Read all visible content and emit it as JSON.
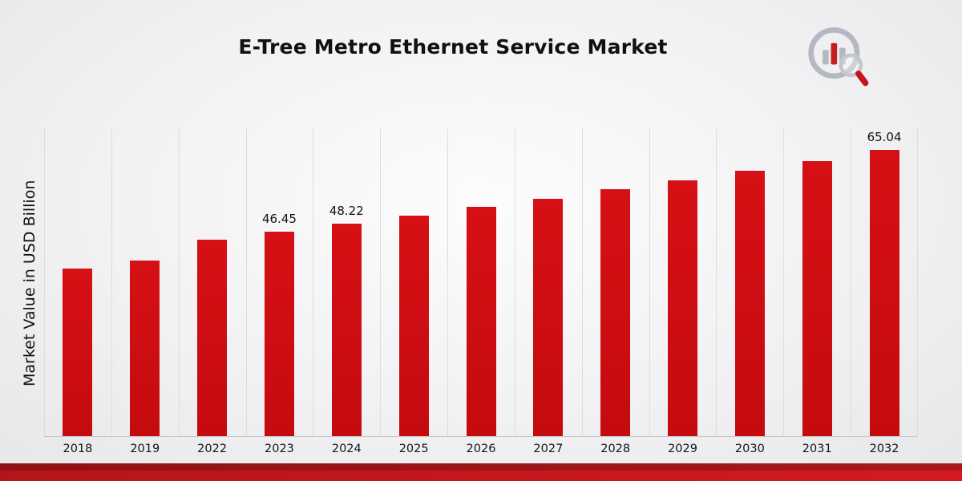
{
  "page": {
    "title": "E-Tree Metro Ethernet Service Market",
    "ylabel": "Market Value in USD Billion",
    "logo_name": "market-research-future-logo"
  },
  "chart_data": {
    "type": "bar",
    "title": "E-Tree Metro Ethernet Service Market",
    "xlabel": "",
    "ylabel": "Market Value in USD Billion",
    "categories": [
      "2018",
      "2019",
      "2022",
      "2023",
      "2024",
      "2025",
      "2026",
      "2027",
      "2028",
      "2029",
      "2030",
      "2031",
      "2032"
    ],
    "values": [
      38.1,
      40.0,
      44.6,
      46.45,
      48.22,
      50.2,
      52.1,
      54.0,
      56.1,
      58.2,
      60.3,
      62.6,
      65.04
    ],
    "data_labels": [
      "",
      "",
      "",
      "46.45",
      "48.22",
      "",
      "",
      "",
      "",
      "",
      "",
      "",
      "65.04"
    ],
    "ylim": [
      0,
      70
    ],
    "bar_color": "#c40b0e",
    "grid": "vertical",
    "legend": "none"
  },
  "colors": {
    "accent_red": "#c40b0e",
    "footer_dark": "#9a1418",
    "footer_bright": "#cf181e",
    "gridline": "#dddddf",
    "logo_gray": "#b4b8c2"
  }
}
